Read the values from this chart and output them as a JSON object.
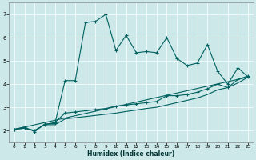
{
  "xlabel": "Humidex (Indice chaleur)",
  "bg_color": "#cce8e8",
  "grid_color": "#ffffff",
  "line_color": "#006060",
  "xlim": [
    -0.5,
    23.5
  ],
  "ylim": [
    1.5,
    7.5
  ],
  "xticks": [
    0,
    1,
    2,
    3,
    4,
    5,
    6,
    7,
    8,
    9,
    10,
    11,
    12,
    13,
    14,
    15,
    16,
    17,
    18,
    19,
    20,
    21,
    22,
    23
  ],
  "yticks": [
    2,
    3,
    4,
    5,
    6,
    7
  ],
  "series1_x": [
    0,
    1,
    2,
    3,
    4,
    5,
    6,
    7,
    8,
    9,
    10,
    11,
    12,
    13,
    14,
    15,
    16,
    17,
    18,
    19,
    20,
    21,
    22,
    23
  ],
  "series1_y": [
    2.05,
    2.15,
    1.95,
    2.28,
    2.3,
    4.15,
    4.15,
    6.65,
    6.7,
    7.0,
    5.45,
    6.1,
    5.35,
    5.4,
    5.35,
    6.0,
    5.1,
    4.8,
    4.9,
    5.7,
    4.55,
    4.0,
    4.7,
    4.3
  ],
  "series2_x": [
    0,
    1,
    2,
    3,
    4,
    5,
    6,
    7,
    8,
    9,
    10,
    11,
    12,
    13,
    14,
    15,
    16,
    17,
    18,
    19,
    20,
    21,
    22,
    23
  ],
  "series2_y": [
    2.05,
    2.1,
    2.0,
    2.25,
    2.35,
    2.75,
    2.8,
    2.85,
    2.9,
    2.95,
    3.05,
    3.1,
    3.15,
    3.2,
    3.25,
    3.5,
    3.5,
    3.55,
    3.65,
    3.8,
    4.0,
    3.85,
    4.2,
    4.35
  ],
  "series3_x": [
    0,
    1,
    2,
    3,
    4,
    5,
    6,
    7,
    8,
    9,
    10,
    11,
    12,
    13,
    14,
    15,
    16,
    17,
    18,
    19,
    20,
    21,
    22,
    23
  ],
  "series3_y": [
    2.05,
    2.1,
    2.0,
    2.25,
    2.25,
    2.5,
    2.55,
    2.6,
    2.65,
    2.7,
    2.75,
    2.82,
    2.88,
    2.95,
    3.0,
    3.1,
    3.2,
    3.3,
    3.4,
    3.55,
    3.75,
    3.85,
    4.05,
    4.3
  ],
  "series4_x": [
    0,
    23
  ],
  "series4_y": [
    2.05,
    4.3
  ]
}
